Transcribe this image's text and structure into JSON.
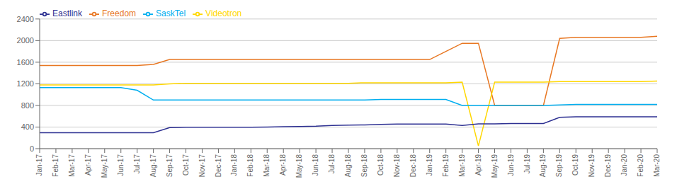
{
  "chart_data": {
    "type": "line",
    "categories": [
      "Jan-17",
      "Feb-17",
      "Mar-17",
      "Apr-17",
      "May-17",
      "Jun-17",
      "Jul-17",
      "Aug-17",
      "Sep-17",
      "Oct-17",
      "Nov-17",
      "Dec-17",
      "Jan-18",
      "Feb-18",
      "Mar-18",
      "Apr-18",
      "May-18",
      "Jun-18",
      "Jul-18",
      "Aug-18",
      "Sep-18",
      "Oct-18",
      "Nov-18",
      "Dec-18",
      "Jan-19",
      "Feb-19",
      "Mar-19",
      "Apr-19",
      "May-19",
      "Jun-19",
      "Jul-19",
      "Aug-19",
      "Sep-19",
      "Oct-19",
      "Nov-19",
      "Dec-19",
      "Jan-20",
      "Feb-20",
      "Mar-20"
    ],
    "series": [
      {
        "name": "Freedom",
        "color": "#E87722",
        "values": [
          1540,
          1540,
          1540,
          1540,
          1540,
          1540,
          1540,
          1560,
          1650,
          1650,
          1650,
          1650,
          1650,
          1650,
          1650,
          1650,
          1650,
          1650,
          1650,
          1650,
          1650,
          1650,
          1650,
          1650,
          1650,
          1800,
          1950,
          1950,
          800,
          800,
          800,
          800,
          2040,
          2060,
          2060,
          2060,
          2060,
          2060,
          2080
        ]
      },
      {
        "name": "Videotron",
        "color": "#FFD700",
        "values": [
          1180,
          1180,
          1180,
          1180,
          1180,
          1180,
          1180,
          1180,
          1200,
          1210,
          1210,
          1210,
          1210,
          1210,
          1210,
          1210,
          1210,
          1210,
          1210,
          1210,
          1220,
          1220,
          1220,
          1220,
          1220,
          1220,
          1230,
          50,
          1230,
          1230,
          1230,
          1230,
          1240,
          1240,
          1240,
          1240,
          1240,
          1240,
          1250
        ]
      },
      {
        "name": "SaskTel",
        "color": "#00AEEF",
        "values": [
          1130,
          1130,
          1130,
          1130,
          1130,
          1130,
          1080,
          900,
          900,
          900,
          900,
          900,
          900,
          900,
          900,
          900,
          900,
          900,
          900,
          900,
          900,
          910,
          910,
          910,
          910,
          910,
          800,
          800,
          800,
          800,
          800,
          800,
          810,
          820,
          820,
          820,
          820,
          820,
          820
        ]
      },
      {
        "name": "Eastlink",
        "color": "#2E3192",
        "values": [
          295,
          295,
          295,
          295,
          295,
          295,
          295,
          295,
          390,
          395,
          395,
          395,
          395,
          395,
          400,
          405,
          410,
          415,
          430,
          435,
          440,
          450,
          455,
          455,
          455,
          455,
          430,
          460,
          460,
          465,
          465,
          465,
          580,
          590,
          590,
          590,
          590,
          590,
          590
        ]
      }
    ],
    "ylim": [
      0,
      2400
    ],
    "yticks": [
      0,
      400,
      800,
      1200,
      1600,
      2000,
      2400
    ],
    "grid": true,
    "legend": "upper left"
  }
}
